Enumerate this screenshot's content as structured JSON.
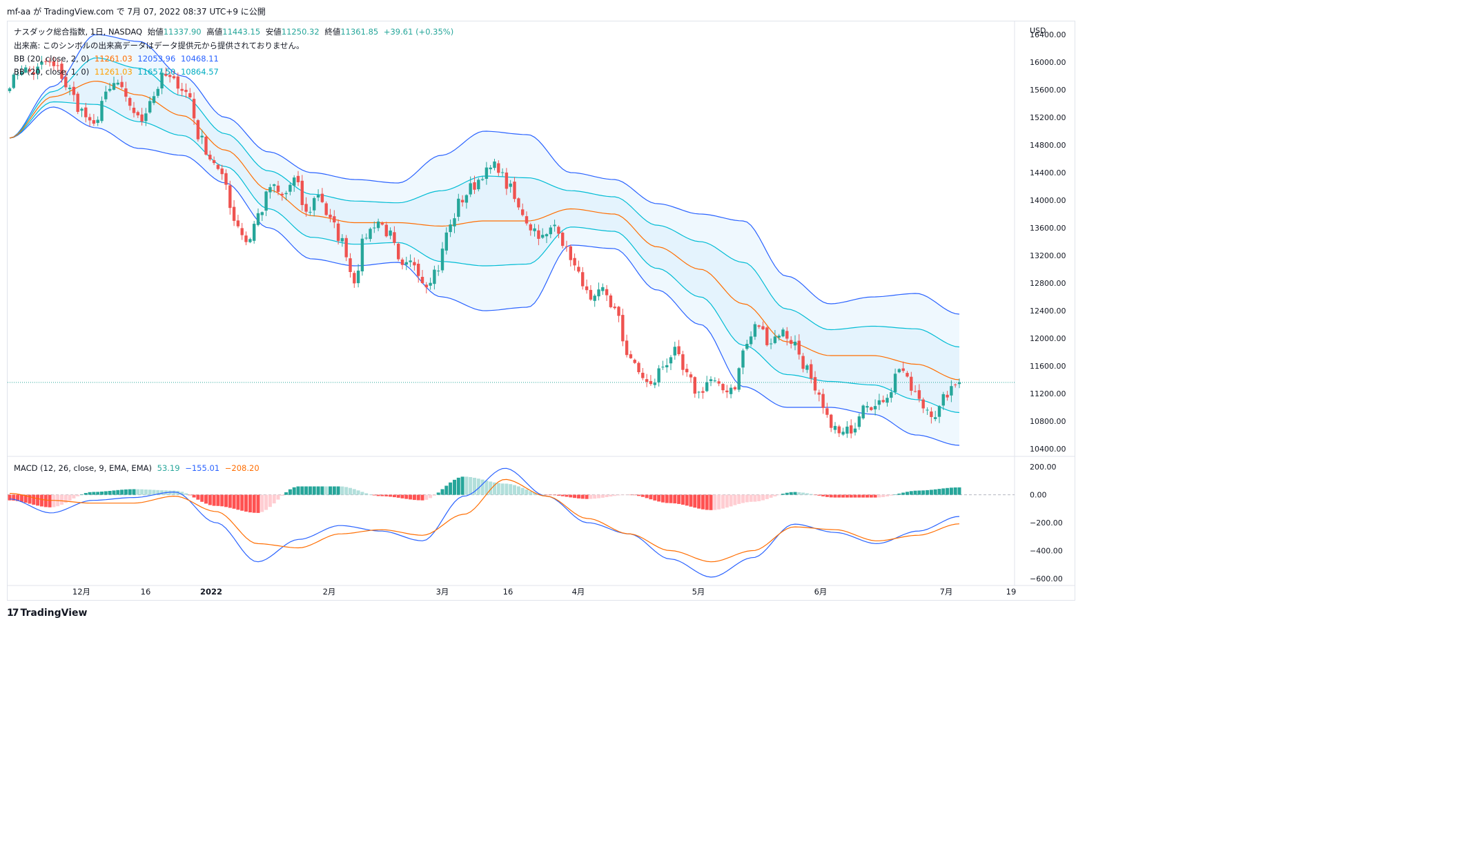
{
  "header": {
    "text": "mf-aa が TradingView.com で 7月 07, 2022 08:37 UTC+9 に公開"
  },
  "legend": {
    "title": "ナスダック総合指数, 1日, NASDAQ",
    "open_label": "始値",
    "open": "11337.90",
    "high_label": "高値",
    "high": "11443.15",
    "low_label": "安値",
    "low": "11250.32",
    "close_label": "終値",
    "close": "11361.85",
    "change": "+39.61 (+0.35%)",
    "volume_note": "出来高: このシンボルの出来高データはデータ提供元から提供されておりません。",
    "bb1_label": "BB (20, close, 2, 0)",
    "bb1_basis": "11261.03",
    "bb1_upper": "12053.96",
    "bb1_lower": "10468.11",
    "bb2_label": "BB (20, close, 1, 0)",
    "bb2_basis": "11261.03",
    "bb2_upper": "11657.50",
    "bb2_lower": "10864.57",
    "macd_label": "MACD (12, 26, close, 9, EMA, EMA)",
    "macd_hist": "53.19",
    "macd_line": "−155.01",
    "macd_signal": "−208.20"
  },
  "price_axis": {
    "unit": "USD",
    "ticks": [
      "16400.00",
      "16000.00",
      "15600.00",
      "15200.00",
      "14800.00",
      "14400.00",
      "14000.00",
      "13600.00",
      "13200.00",
      "12800.00",
      "12400.00",
      "12000.00",
      "11600.00",
      "11200.00",
      "10800.00",
      "10400.00"
    ]
  },
  "macd_axis": {
    "ticks": [
      "200.00",
      "0.00",
      "−200.00",
      "−400.00",
      "−600.00"
    ]
  },
  "time_axis": {
    "labels": [
      "12月",
      "16",
      "2022",
      "2月",
      "3月",
      "16",
      "4月",
      "5月",
      "6月",
      "7月",
      "19"
    ]
  },
  "footer": {
    "brand": "TradingView",
    "mark": "17"
  },
  "colors": {
    "up": "#26a69a",
    "down": "#ef5350",
    "bb_outer": "#2962ff",
    "bb_inner": "#00bcd4",
    "basis": "#ff6d00",
    "macd": "#2962ff",
    "signal": "#ff6d00",
    "hist_up_strong": "#26a69a",
    "hist_up_weak": "#b2dfdb",
    "hist_down_strong": "#ff5252",
    "hist_down_weak": "#ffcdd2"
  },
  "chart_data": {
    "type": "candlestick",
    "period": "1D",
    "price_range": [
      10300,
      16500
    ],
    "macd_range": [
      -620,
      270
    ],
    "series": [
      {
        "name": "BB (20, close, 2, 0)",
        "last": {
          "basis": 11261.03,
          "upper": 12053.96,
          "lower": 10468.11
        }
      },
      {
        "name": "BB (20, close, 1, 0)",
        "last": {
          "basis": 11261.03,
          "upper": 11657.5,
          "lower": 10864.57
        }
      },
      {
        "name": "MACD (12, 26, close, 9, EMA, EMA)",
        "last": {
          "histogram": 53.19,
          "macd": -155.01,
          "signal": -208.2
        }
      }
    ],
    "close_anchors": [
      15700,
      15900,
      15850,
      16000,
      15900,
      15600,
      15300,
      15050,
      15500,
      15700,
      15400,
      15150,
      15500,
      15800,
      15700,
      15550,
      14900,
      14600,
      14300,
      13700,
      13400,
      13800,
      14200,
      14050,
      14300,
      13800,
      14100,
      13700,
      13400,
      12850,
      13500,
      13700,
      13500,
      13000,
      13100,
      12800,
      13000,
      13600,
      14000,
      14200,
      14400,
      14500,
      14200,
      13850,
      13600,
      13450,
      13650,
      13250,
      12900,
      12500,
      12700,
      12400,
      11800,
      11500,
      11300,
      11600,
      11800,
      11450,
      11200,
      11400,
      11250,
      11300,
      11900,
      12200,
      11950,
      12100,
      11950,
      11600,
      11150,
      10800,
      10600,
      10700,
      11100,
      11000,
      11200,
      11600,
      11250,
      11000,
      10900,
      11200,
      11362
    ],
    "last_close": 11361.85,
    "bb_upper_anchors": [
      14900,
      15650,
      16400,
      16300,
      15800,
      15200,
      14700,
      14400,
      14300,
      14250,
      14650,
      15000,
      14950,
      14400,
      14300,
      13950,
      13800,
      13700,
      12900,
      12500,
      12600,
      12650,
      12350
    ],
    "bb_lower_anchors": [
      14900,
      15350,
      15050,
      14750,
      14650,
      14250,
      13600,
      13150,
      13050,
      13100,
      12600,
      12400,
      12450,
      13350,
      13300,
      12700,
      12200,
      11300,
      11000,
      11000,
      10900,
      10600,
      10450
    ],
    "macd_anchors": [
      -30,
      -130,
      -40,
      -20,
      20,
      -200,
      -480,
      -320,
      -220,
      -260,
      -330,
      -10,
      190,
      -10,
      -200,
      -280,
      -460,
      -590,
      -450,
      -210,
      -270,
      -350,
      -260,
      -155
    ],
    "signal_anchors": [
      10,
      -40,
      -60,
      -60,
      -10,
      -120,
      -350,
      -380,
      -280,
      -250,
      -290,
      -140,
      110,
      -10,
      -170,
      -280,
      -400,
      -480,
      -400,
      -230,
      -250,
      -330,
      -290,
      -208
    ]
  }
}
